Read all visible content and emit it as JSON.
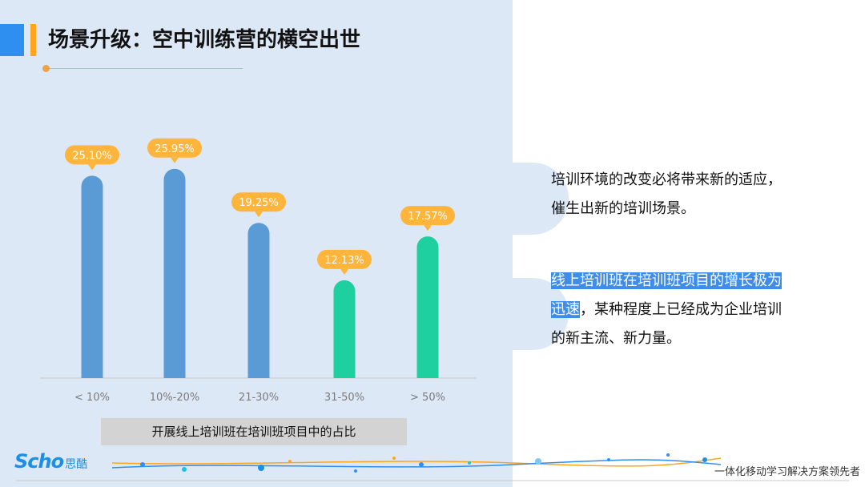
{
  "title": "场景升级：空中训练营的横空出世",
  "chart_data": {
    "type": "bar",
    "categories": [
      "< 10%",
      "10%-20%",
      "21-30%",
      "31-50%",
      "> 50%"
    ],
    "values": [
      25.1,
      25.95,
      19.25,
      12.13,
      17.57
    ],
    "labels": [
      "25.10%",
      "25.95%",
      "19.25%",
      "12.13%",
      "17.57%"
    ],
    "bar_colors": [
      "#5b9bd5",
      "#5b9bd5",
      "#5b9bd5",
      "#1ecfa0",
      "#1ecfa0"
    ],
    "label_bg": "#ffb43c",
    "ylim": [
      0,
      30
    ]
  },
  "caption": "开展线上培训班在培训班项目中的占比",
  "text1": {
    "line1": "培训环境的改变必将带来新的适应，",
    "line2": "催生出新的培训场景。"
  },
  "text2": {
    "hl1": "线上培训班在培训班项目的增长极为",
    "hl2": "迅速",
    "rest2": "，某种程度上已经成为企业培训",
    "line3": "的新主流、新力量。"
  },
  "footer": {
    "logo_text": "Scho",
    "logo_cn": "思酷",
    "slogan": "一体化移动学习解决方案领先者"
  },
  "colors": {
    "accent_blue": "#2f8ff0",
    "accent_orange": "#ffa51e",
    "panel_bg": "#dde8f7",
    "highlight": "#3f8de8"
  }
}
